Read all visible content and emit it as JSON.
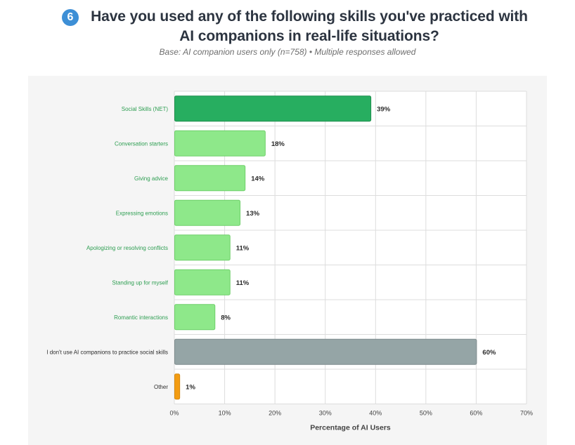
{
  "question": {
    "number": "6",
    "title": "Have you used any of the following skills you've practiced with AI companions in real-life situations?",
    "subtitle": "Base: AI companion users only (n=758) • Multiple responses allowed"
  },
  "colors": {
    "net": "#27ae60",
    "skill": "#8ee88a",
    "none": "#95a5a6",
    "other": "#f39c12",
    "category_text_green": "#2e9e52",
    "category_text_dark": "#2b2b2b",
    "grid": "#dddddd"
  },
  "chart_data": {
    "type": "bar",
    "orientation": "horizontal",
    "xlabel": "Percentage of AI Users",
    "xlim": [
      0,
      70
    ],
    "xticks": [
      0,
      10,
      20,
      30,
      40,
      50,
      60,
      70
    ],
    "tick_suffix": "%",
    "grid": true,
    "bars": [
      {
        "category": "Social Skills (NET)",
        "value": 39,
        "label": "39%",
        "color_key": "net",
        "text_color_key": "category_text_green"
      },
      {
        "category": "Conversation starters",
        "value": 18,
        "label": "18%",
        "color_key": "skill",
        "text_color_key": "category_text_green"
      },
      {
        "category": "Giving advice",
        "value": 14,
        "label": "14%",
        "color_key": "skill",
        "text_color_key": "category_text_green"
      },
      {
        "category": "Expressing emotions",
        "value": 13,
        "label": "13%",
        "color_key": "skill",
        "text_color_key": "category_text_green"
      },
      {
        "category": "Apologizing or resolving conflicts",
        "value": 11,
        "label": "11%",
        "color_key": "skill",
        "text_color_key": "category_text_green"
      },
      {
        "category": "Standing up for myself",
        "value": 11,
        "label": "11%",
        "color_key": "skill",
        "text_color_key": "category_text_green"
      },
      {
        "category": "Romantic interactions",
        "value": 8,
        "label": "8%",
        "color_key": "skill",
        "text_color_key": "category_text_green"
      },
      {
        "category": "I don't use AI companions to practice social skills",
        "value": 60,
        "label": "60%",
        "color_key": "none",
        "text_color_key": "category_text_dark"
      },
      {
        "category": "Other",
        "value": 1,
        "label": "1%",
        "color_key": "other",
        "text_color_key": "category_text_dark"
      }
    ]
  }
}
